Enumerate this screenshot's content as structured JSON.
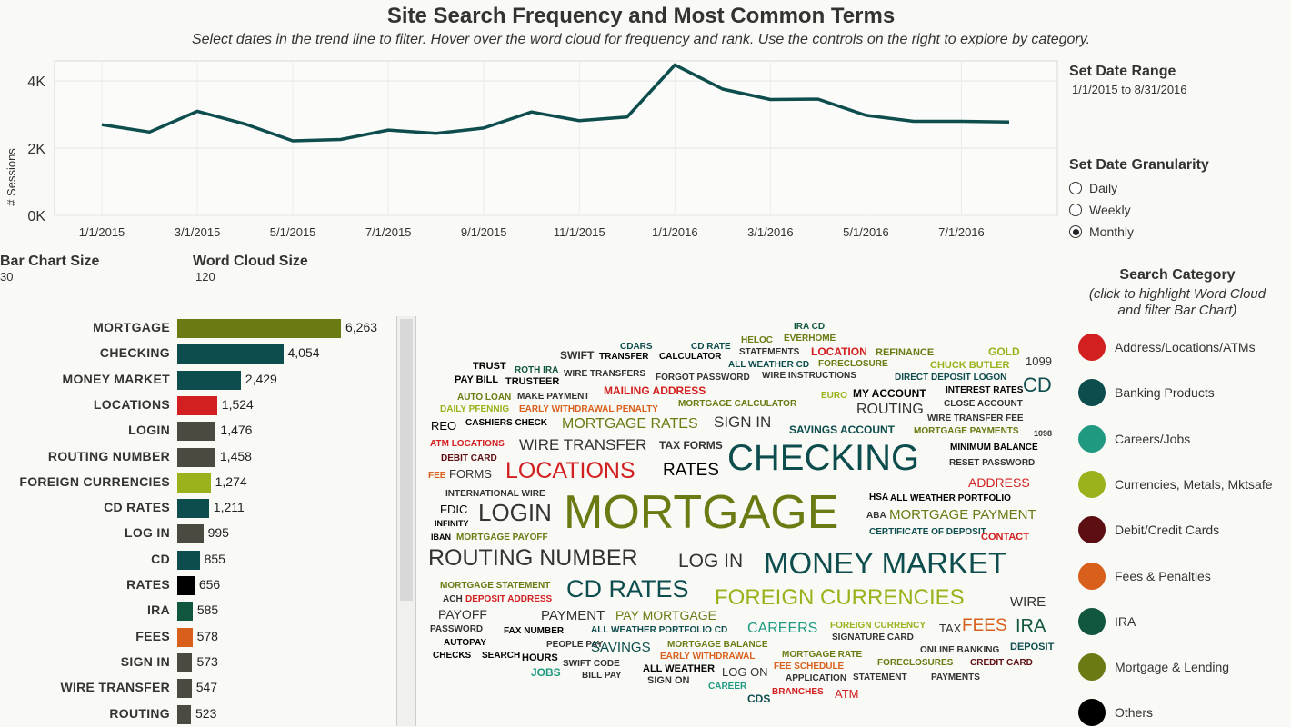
{
  "title": "Site Search Frequency and Most Common Terms",
  "subtitle": "Select dates in the trend line to filter. Hover over the word cloud for frequency and rank. Use the controls on the right to explore by category.",
  "controls": {
    "date_range_label": "Set Date Range",
    "date_range_value": "1/1/2015 to 8/31/2016",
    "granularity_label": "Set Date Granularity",
    "granularity_options": [
      "Daily",
      "Weekly",
      "Monthly"
    ],
    "granularity_selected": "Monthly",
    "bar_size_label": "Bar Chart Size",
    "bar_size_value": "30",
    "cloud_size_label": "Word Cloud Size",
    "cloud_size_value": "120"
  },
  "legend": {
    "title": "Search Category",
    "subtitle_line1": "(click to highlight Word Cloud",
    "subtitle_line2": "and filter Bar Chart)",
    "items": [
      {
        "label": "Address/Locations/ATMs",
        "color": "#d21f1f"
      },
      {
        "label": "Banking Products",
        "color": "#0d4d4d"
      },
      {
        "label": "Careers/Jobs",
        "color": "#1f9a80"
      },
      {
        "label": "Currencies, Metals, Mktsafe",
        "color": "#9bb21c"
      },
      {
        "label": "Debit/Credit Cards",
        "color": "#5c0e12"
      },
      {
        "label": "Fees & Penalties",
        "color": "#d9601c"
      },
      {
        "label": "IRA",
        "color": "#11573f"
      },
      {
        "label": "Mortgage & Lending",
        "color": "#6b7a12"
      },
      {
        "label": "Others",
        "color": "#000000"
      }
    ]
  },
  "chart_data": [
    {
      "type": "line",
      "ylabel": "# Sessions",
      "y_ticks": [
        "0K",
        "2K",
        "4K"
      ],
      "ylim": [
        0,
        4600
      ],
      "x_ticks": [
        "1/1/2015",
        "3/1/2015",
        "5/1/2015",
        "7/1/2015",
        "9/1/2015",
        "11/1/2015",
        "1/1/2016",
        "3/1/2016",
        "5/1/2016",
        "7/1/2016"
      ],
      "x": [
        "2015-01",
        "2015-02",
        "2015-03",
        "2015-04",
        "2015-05",
        "2015-06",
        "2015-07",
        "2015-08",
        "2015-09",
        "2015-10",
        "2015-11",
        "2015-12",
        "2016-01",
        "2016-02",
        "2016-03",
        "2016-04",
        "2016-05",
        "2016-06",
        "2016-07",
        "2016-08"
      ],
      "series": [
        {
          "values": [
            2700,
            2480,
            3100,
            2720,
            2220,
            2260,
            2540,
            2440,
            2600,
            3080,
            2820,
            2930,
            4480,
            3760,
            3450,
            3460,
            2980,
            2800,
            2800,
            2780
          ],
          "color": "#0d4d4d"
        }
      ],
      "grid": true
    },
    {
      "type": "bar",
      "orientation": "horizontal",
      "categories": [
        "MORTGAGE",
        "CHECKING",
        "MONEY MARKET",
        "LOCATIONS",
        "LOGIN",
        "ROUTING NUMBER",
        "FOREIGN CURRENCIES",
        "CD RATES",
        "LOG IN",
        "CD",
        "RATES",
        "IRA",
        "FEES",
        "SIGN IN",
        "WIRE TRANSFER",
        "ROUTING"
      ],
      "values": [
        6263,
        4054,
        2429,
        1524,
        1476,
        1458,
        1274,
        1211,
        995,
        855,
        656,
        585,
        578,
        573,
        547,
        523
      ],
      "value_labels": [
        "6,263",
        "4,054",
        "2,429",
        "1,524",
        "1,476",
        "1,458",
        "1,274",
        "1,211",
        "995",
        "855",
        "656",
        "585",
        "578",
        "573",
        "547",
        "523"
      ],
      "colors": [
        "#6b7a12",
        "#0d4d4d",
        "#0d4d4d",
        "#d21f1f",
        "#4a4a40",
        "#4a4a40",
        "#9bb21c",
        "#0d4d4d",
        "#4a4a40",
        "#0d4d4d",
        "#000000",
        "#11573f",
        "#d9601c",
        "#4a4a40",
        "#4a4a40",
        "#4a4a40"
      ]
    }
  ],
  "word_cloud": [
    {
      "text": "IRA CD",
      "color": "#11573f",
      "size": 10
    },
    {
      "text": "CDARS",
      "color": "#0d4d4d",
      "size": 10
    },
    {
      "text": "CD RATE",
      "color": "#0d4d4d",
      "size": 10
    },
    {
      "text": "HELOC",
      "color": "#6b7a12",
      "size": 10
    },
    {
      "text": "EVERHOME",
      "color": "#6b7a12",
      "size": 10
    },
    {
      "text": "STATEMENTS",
      "color": "#333",
      "size": 10
    },
    {
      "text": "LOCATION",
      "color": "#d21f1f",
      "size": 12
    },
    {
      "text": "REFINANCE",
      "color": "#6b7a12",
      "size": 11
    },
    {
      "text": "GOLD",
      "color": "#9bb21c",
      "size": 12
    },
    {
      "text": "SWIFT",
      "color": "#333",
      "size": 12
    },
    {
      "text": "TRANSFER",
      "color": "#000",
      "size": 10
    },
    {
      "text": "CALCULATOR",
      "color": "#000",
      "size": 10
    },
    {
      "text": "ALL WEATHER CD",
      "color": "#0d4d4d",
      "size": 10
    },
    {
      "text": "FORECLOSURE",
      "color": "#6b7a12",
      "size": 10
    },
    {
      "text": "CHUCK BUTLER",
      "color": "#9bb21c",
      "size": 11
    },
    {
      "text": "1099",
      "color": "#333",
      "size": 13
    },
    {
      "text": "TRUST",
      "color": "#000",
      "size": 11
    },
    {
      "text": "ROTH IRA",
      "color": "#11573f",
      "size": 10
    },
    {
      "text": "WIRE TRANSFERS",
      "color": "#333",
      "size": 10
    },
    {
      "text": "FORGOT PASSWORD",
      "color": "#333",
      "size": 10
    },
    {
      "text": "WIRE INSTRUCTIONS",
      "color": "#333",
      "size": 10
    },
    {
      "text": "DIRECT DEPOSIT LOGON",
      "color": "#0d4d4d",
      "size": 10
    },
    {
      "text": "PAY BILL",
      "color": "#000",
      "size": 11
    },
    {
      "text": "TRUSTEER",
      "color": "#000",
      "size": 11
    },
    {
      "text": "CD",
      "color": "#0d4d4d",
      "size": 22
    },
    {
      "text": "MAILING ADDRESS",
      "color": "#d21f1f",
      "size": 12
    },
    {
      "text": "INTEREST RATES",
      "color": "#000",
      "size": 10
    },
    {
      "text": "AUTO LOAN",
      "color": "#6b7a12",
      "size": 10
    },
    {
      "text": "MAKE PAYMENT",
      "color": "#333",
      "size": 10
    },
    {
      "text": "EURO",
      "color": "#9bb21c",
      "size": 10
    },
    {
      "text": "MY ACCOUNT",
      "color": "#000",
      "size": 12
    },
    {
      "text": "DAILY PFENNIG",
      "color": "#9bb21c",
      "size": 10
    },
    {
      "text": "EARLY WITHDRAWAL PENALTY",
      "color": "#d9601c",
      "size": 10
    },
    {
      "text": "MORTGAGE CALCULATOR",
      "color": "#6b7a12",
      "size": 10
    },
    {
      "text": "CLOSE ACCOUNT",
      "color": "#333",
      "size": 10
    },
    {
      "text": "ROUTING",
      "color": "#333",
      "size": 16
    },
    {
      "text": "REO",
      "color": "#000",
      "size": 13
    },
    {
      "text": "CASHIERS CHECK",
      "color": "#000",
      "size": 10
    },
    {
      "text": "MORTGAGE RATES",
      "color": "#6b7a12",
      "size": 16
    },
    {
      "text": "SIGN IN",
      "color": "#333",
      "size": 17
    },
    {
      "text": "SAVINGS ACCOUNT",
      "color": "#0d4d4d",
      "size": 12
    },
    {
      "text": "WIRE TRANSFER FEE",
      "color": "#333",
      "size": 10
    },
    {
      "text": "MORTGAGE PAYMENTS",
      "color": "#6b7a12",
      "size": 10
    },
    {
      "text": "1098",
      "color": "#333",
      "size": 9
    },
    {
      "text": "ATM LOCATIONS",
      "color": "#d21f1f",
      "size": 10
    },
    {
      "text": "WIRE TRANSFER",
      "color": "#333",
      "size": 17
    },
    {
      "text": "TAX FORMS",
      "color": "#333",
      "size": 12
    },
    {
      "text": "MINIMUM BALANCE",
      "color": "#000",
      "size": 10
    },
    {
      "text": "DEBIT CARD",
      "color": "#5c0e12",
      "size": 10
    },
    {
      "text": "CHECKING",
      "color": "#0d4d4d",
      "size": 40
    },
    {
      "text": "RESET PASSWORD",
      "color": "#333",
      "size": 10
    },
    {
      "text": "FEE",
      "color": "#d9601c",
      "size": 10
    },
    {
      "text": "FORMS",
      "color": "#333",
      "size": 13
    },
    {
      "text": "LOCATIONS",
      "color": "#d21f1f",
      "size": 25
    },
    {
      "text": "RATES",
      "color": "#000",
      "size": 19
    },
    {
      "text": "ADDRESS",
      "color": "#d21f1f",
      "size": 14
    },
    {
      "text": "INTERNATIONAL WIRE",
      "color": "#333",
      "size": 10
    },
    {
      "text": "HSA",
      "color": "#000",
      "size": 10
    },
    {
      "text": "ALL WEATHER PORTFOLIO",
      "color": "#000",
      "size": 10
    },
    {
      "text": "FDIC",
      "color": "#000",
      "size": 13
    },
    {
      "text": "LOGIN",
      "color": "#333",
      "size": 26
    },
    {
      "text": "MORTGAGE",
      "color": "#6b7a12",
      "size": 52
    },
    {
      "text": "ABA",
      "color": "#333",
      "size": 10
    },
    {
      "text": "MORTGAGE PAYMENT",
      "color": "#6b7a12",
      "size": 15
    },
    {
      "text": "INFINITY",
      "color": "#000",
      "size": 9
    },
    {
      "text": "CERTIFICATE OF DEPOSIT",
      "color": "#0d4d4d",
      "size": 10
    },
    {
      "text": "IBAN",
      "color": "#000",
      "size": 9
    },
    {
      "text": "MORTGAGE PAYOFF",
      "color": "#6b7a12",
      "size": 10
    },
    {
      "text": "CONTACT",
      "color": "#d21f1f",
      "size": 11
    },
    {
      "text": "ROUTING NUMBER",
      "color": "#333",
      "size": 25
    },
    {
      "text": "LOG IN",
      "color": "#333",
      "size": 21
    },
    {
      "text": "MONEY MARKET",
      "color": "#0d4d4d",
      "size": 33
    },
    {
      "text": "MORTGAGE STATEMENT",
      "color": "#6b7a12",
      "size": 10
    },
    {
      "text": "CD RATES",
      "color": "#0d4d4d",
      "size": 27
    },
    {
      "text": "ACH",
      "color": "#333",
      "size": 10
    },
    {
      "text": "DEPOSIT ADDRESS",
      "color": "#d21f1f",
      "size": 10
    },
    {
      "text": "FOREIGN CURRENCIES",
      "color": "#9bb21c",
      "size": 24
    },
    {
      "text": "WIRE",
      "color": "#333",
      "size": 15
    },
    {
      "text": "PAYOFF",
      "color": "#333",
      "size": 14
    },
    {
      "text": "PAYMENT",
      "color": "#333",
      "size": 15
    },
    {
      "text": "PAY MORTGAGE",
      "color": "#6b7a12",
      "size": 14
    },
    {
      "text": "PASSWORD",
      "color": "#333",
      "size": 10
    },
    {
      "text": "FAX NUMBER",
      "color": "#000",
      "size": 10
    },
    {
      "text": "ALL WEATHER PORTFOLIO CD",
      "color": "#0d4d4d",
      "size": 10
    },
    {
      "text": "CAREERS",
      "color": "#1f9a80",
      "size": 16
    },
    {
      "text": "FOREIGN CURRENCY",
      "color": "#9bb21c",
      "size": 10
    },
    {
      "text": "TAX",
      "color": "#333",
      "size": 13
    },
    {
      "text": "FEES",
      "color": "#d9601c",
      "size": 19
    },
    {
      "text": "IRA",
      "color": "#11573f",
      "size": 20
    },
    {
      "text": "AUTOPAY",
      "color": "#000",
      "size": 10
    },
    {
      "text": "PEOPLE PAY",
      "color": "#333",
      "size": 10
    },
    {
      "text": "SAVINGS",
      "color": "#0d4d4d",
      "size": 15
    },
    {
      "text": "MORTGAGE BALANCE",
      "color": "#6b7a12",
      "size": 10
    },
    {
      "text": "SIGNATURE CARD",
      "color": "#333",
      "size": 10
    },
    {
      "text": "ONLINE BANKING",
      "color": "#333",
      "size": 10
    },
    {
      "text": "DEPOSIT",
      "color": "#0d4d4d",
      "size": 11
    },
    {
      "text": "CHECKS",
      "color": "#000",
      "size": 10
    },
    {
      "text": "SEARCH",
      "color": "#000",
      "size": 10
    },
    {
      "text": "HOURS",
      "color": "#000",
      "size": 11
    },
    {
      "text": "SWIFT CODE",
      "color": "#333",
      "size": 10
    },
    {
      "text": "EARLY WITHDRAWAL",
      "color": "#d9601c",
      "size": 10
    },
    {
      "text": "MORTGAGE RATE",
      "color": "#6b7a12",
      "size": 10
    },
    {
      "text": "FORECLOSURES",
      "color": "#6b7a12",
      "size": 10
    },
    {
      "text": "CREDIT CARD",
      "color": "#5c0e12",
      "size": 10
    },
    {
      "text": "JOBS",
      "color": "#1f9a80",
      "size": 12
    },
    {
      "text": "BILL PAY",
      "color": "#333",
      "size": 10
    },
    {
      "text": "ALL WEATHER",
      "color": "#000",
      "size": 11
    },
    {
      "text": "LOG ON",
      "color": "#333",
      "size": 13
    },
    {
      "text": "FEE SCHEDULE",
      "color": "#d9601c",
      "size": 10
    },
    {
      "text": "APPLICATION",
      "color": "#333",
      "size": 10
    },
    {
      "text": "STATEMENT",
      "color": "#333",
      "size": 10
    },
    {
      "text": "PAYMENTS",
      "color": "#333",
      "size": 10
    },
    {
      "text": "SIGN ON",
      "color": "#333",
      "size": 11
    },
    {
      "text": "CAREER",
      "color": "#1f9a80",
      "size": 10
    },
    {
      "text": "CDS",
      "color": "#0d4d4d",
      "size": 12
    },
    {
      "text": "BRANCHES",
      "color": "#d21f1f",
      "size": 10
    },
    {
      "text": "ATM",
      "color": "#d21f1f",
      "size": 13
    }
  ]
}
